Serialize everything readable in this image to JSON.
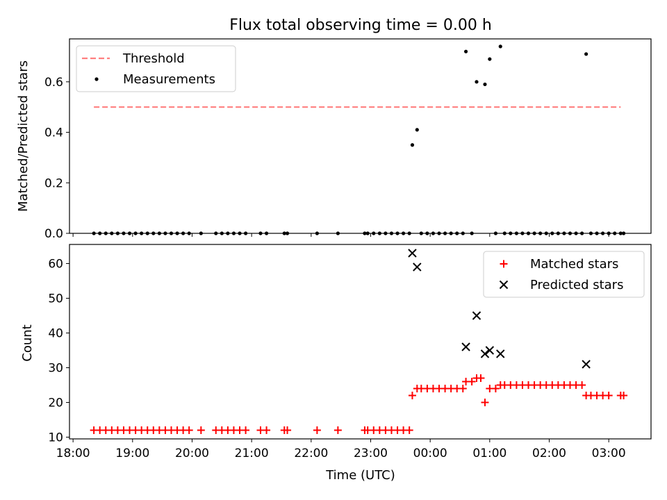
{
  "title": "Flux total observing time = 0.00 h",
  "colors": {
    "threshold": "#ff7f7f",
    "measurement": "#000000",
    "matched": "#ff0000",
    "predicted": "#000000"
  },
  "chart_data": [
    {
      "type": "scatter",
      "title": "Flux total observing time = 0.00 h",
      "ylabel": "Matched/Predicted stars",
      "ylim": [
        0,
        0.77
      ],
      "yticks": [
        0.0,
        0.2,
        0.4,
        0.6
      ],
      "ytick_labels": [
        "0.0",
        "0.2",
        "0.4",
        "0.6"
      ],
      "xlim": [
        17.94,
        27.71
      ],
      "grid": false,
      "legend_position": "top-left",
      "legend": [
        "Threshold",
        "Measurements"
      ],
      "threshold": {
        "name": "Threshold",
        "value": 0.5,
        "x_range": [
          18.35,
          27.2
        ]
      },
      "series": [
        {
          "name": "Measurements",
          "x": [
            18.35,
            18.45,
            18.55,
            18.65,
            18.75,
            18.85,
            18.95,
            19.05,
            19.15,
            19.25,
            19.35,
            19.45,
            19.55,
            19.65,
            19.75,
            19.85,
            19.95,
            20.15,
            20.4,
            20.5,
            20.6,
            20.7,
            20.8,
            20.9,
            21.15,
            21.25,
            21.55,
            21.6,
            22.1,
            22.45,
            22.9,
            22.95,
            23.05,
            23.15,
            23.25,
            23.35,
            23.45,
            23.55,
            23.65,
            23.7,
            23.78,
            23.85,
            23.95,
            24.05,
            24.15,
            24.25,
            24.35,
            24.45,
            24.55,
            24.6,
            24.7,
            24.78,
            24.92,
            25.0,
            25.1,
            25.18,
            25.25,
            25.35,
            25.45,
            25.55,
            25.65,
            25.75,
            25.85,
            25.95,
            26.05,
            26.15,
            26.25,
            26.35,
            26.45,
            26.55,
            26.62,
            26.7,
            26.8,
            26.9,
            27.0,
            27.1,
            27.2,
            27.25
          ],
          "y": [
            0,
            0,
            0,
            0,
            0,
            0,
            0,
            0,
            0,
            0,
            0,
            0,
            0,
            0,
            0,
            0,
            0,
            0,
            0,
            0,
            0,
            0,
            0,
            0,
            0,
            0,
            0,
            0,
            0,
            0,
            0,
            0,
            0,
            0,
            0,
            0,
            0,
            0,
            0,
            0.35,
            0.41,
            0,
            0,
            0,
            0,
            0,
            0,
            0,
            0,
            0.72,
            0,
            0.6,
            0.59,
            0.69,
            0,
            0.74,
            0,
            0,
            0,
            0,
            0,
            0,
            0,
            0,
            0,
            0,
            0,
            0,
            0,
            0,
            0.71,
            0,
            0,
            0,
            0,
            0,
            0,
            0
          ]
        }
      ]
    },
    {
      "type": "scatter",
      "xlabel": "Time (UTC)",
      "ylabel": "Count",
      "ylim": [
        9.5,
        65.5
      ],
      "yticks": [
        10,
        20,
        30,
        40,
        50,
        60
      ],
      "ytick_labels": [
        "10",
        "20",
        "30",
        "40",
        "50",
        "60"
      ],
      "xlim": [
        17.94,
        27.71
      ],
      "xticks": [
        18,
        19,
        20,
        21,
        22,
        23,
        24,
        25,
        26,
        27
      ],
      "xtick_labels": [
        "18:00",
        "19:00",
        "20:00",
        "21:00",
        "22:00",
        "23:00",
        "00:00",
        "01:00",
        "02:00",
        "03:00"
      ],
      "grid": false,
      "legend_position": "top-right",
      "legend": [
        "Matched stars",
        "Predicted stars"
      ],
      "series": [
        {
          "name": "Matched stars",
          "x": [
            18.35,
            18.45,
            18.55,
            18.65,
            18.75,
            18.85,
            18.95,
            19.05,
            19.15,
            19.25,
            19.35,
            19.45,
            19.55,
            19.65,
            19.75,
            19.85,
            19.95,
            20.15,
            20.4,
            20.5,
            20.6,
            20.7,
            20.8,
            20.9,
            21.15,
            21.25,
            21.55,
            21.6,
            22.1,
            22.45,
            22.9,
            22.95,
            23.05,
            23.15,
            23.25,
            23.35,
            23.45,
            23.55,
            23.65,
            23.7,
            23.78,
            23.85,
            23.95,
            24.05,
            24.15,
            24.25,
            24.35,
            24.45,
            24.55,
            24.6,
            24.7,
            24.78,
            24.85,
            24.92,
            25.0,
            25.1,
            25.18,
            25.25,
            25.35,
            25.45,
            25.55,
            25.65,
            25.75,
            25.85,
            25.95,
            26.05,
            26.15,
            26.25,
            26.35,
            26.45,
            26.55,
            26.62,
            26.7,
            26.8,
            26.9,
            27.0,
            27.2,
            27.25
          ],
          "y": [
            12,
            12,
            12,
            12,
            12,
            12,
            12,
            12,
            12,
            12,
            12,
            12,
            12,
            12,
            12,
            12,
            12,
            12,
            12,
            12,
            12,
            12,
            12,
            12,
            12,
            12,
            12,
            12,
            12,
            12,
            12,
            12,
            12,
            12,
            12,
            12,
            12,
            12,
            12,
            22,
            24,
            24,
            24,
            24,
            24,
            24,
            24,
            24,
            24,
            26,
            26,
            27,
            27,
            20,
            24,
            24,
            25,
            25,
            25,
            25,
            25,
            25,
            25,
            25,
            25,
            25,
            25,
            25,
            25,
            25,
            25,
            22,
            22,
            22,
            22,
            22,
            22,
            22
          ]
        },
        {
          "name": "Predicted stars",
          "x": [
            23.7,
            23.78,
            24.6,
            24.78,
            24.92,
            25.0,
            25.18,
            26.62
          ],
          "y": [
            63,
            59,
            36,
            45,
            34,
            35,
            34,
            31
          ]
        }
      ]
    }
  ]
}
